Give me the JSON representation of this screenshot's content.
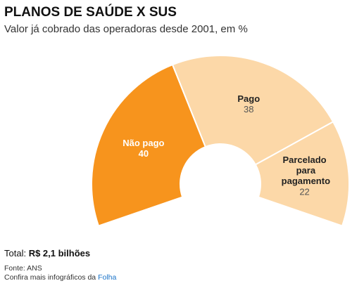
{
  "chart_data": {
    "type": "pie",
    "title": "PLANOS DE SAÚDE X SUS",
    "subtitle": "Valor já cobrado das operadoras desde 2001, em %",
    "categories": [
      "Não pago",
      "Pago",
      "Parcelado para pagamento"
    ],
    "values": [
      40,
      38,
      22
    ],
    "colors": [
      "#f7941d",
      "#fcd8a8",
      "#fcd8a8"
    ],
    "total_label": "Total:",
    "total_value": "R$ 2,1 bilhões",
    "source": "Fonte: ANS",
    "credit": "Confira mais infográficos da",
    "credit_link": "Folha"
  }
}
